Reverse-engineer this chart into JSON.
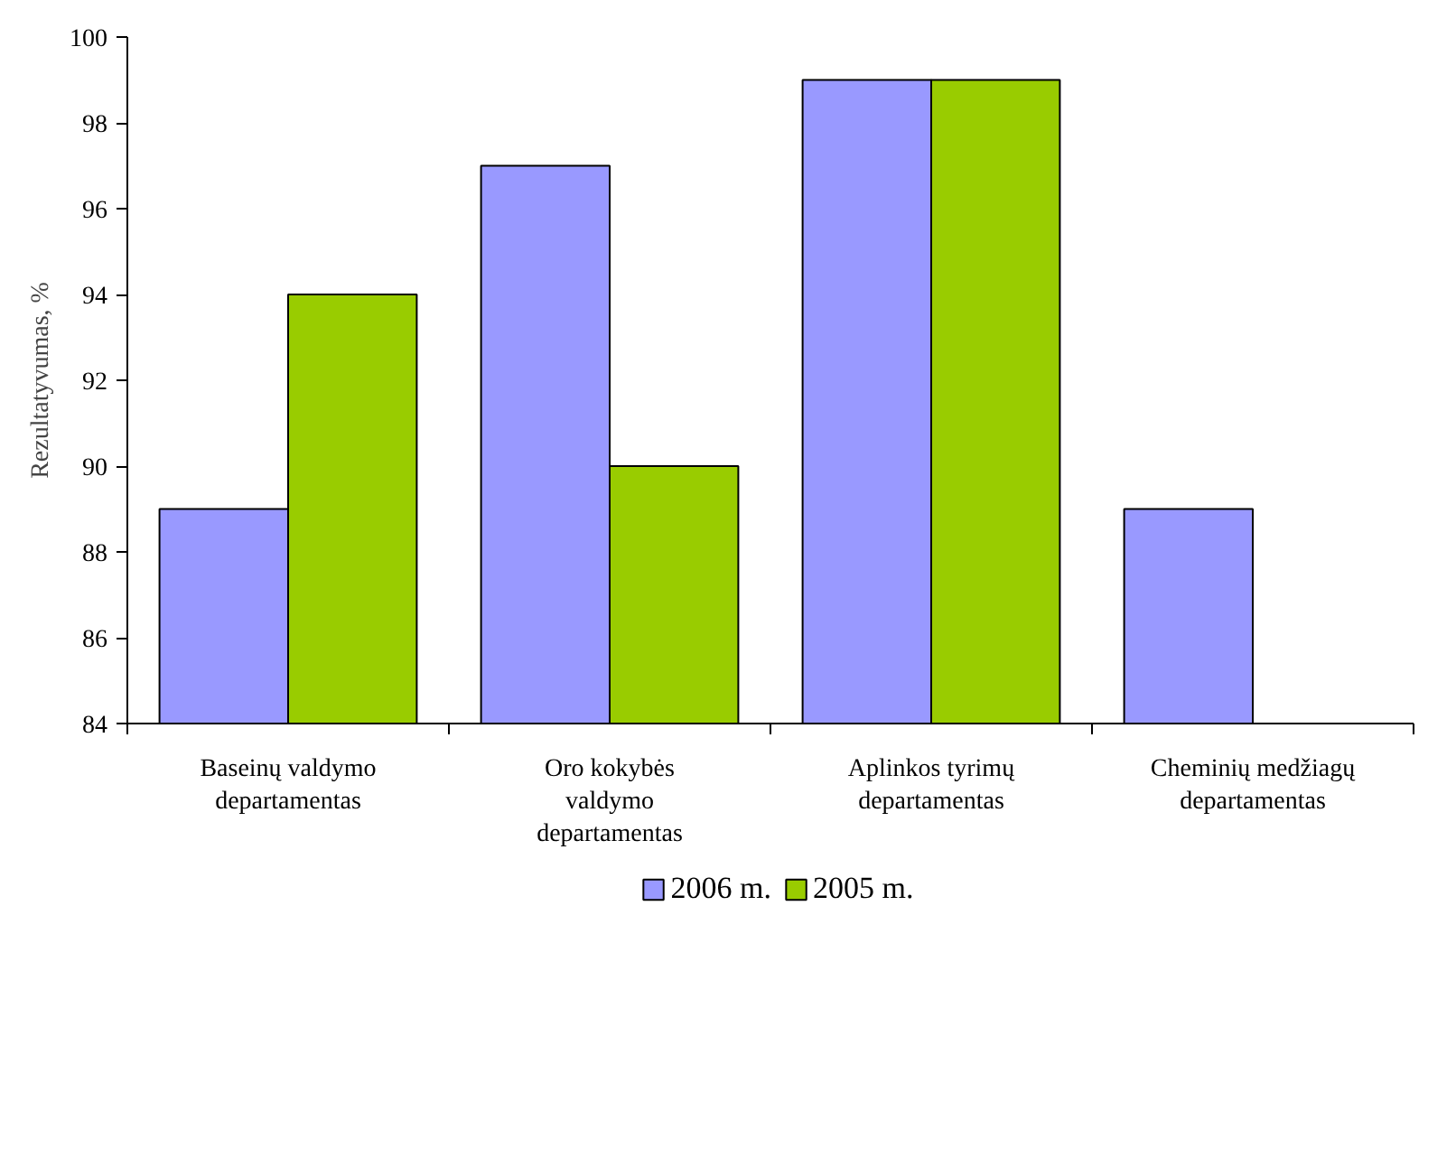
{
  "chart_data": {
    "type": "bar",
    "ylabel": "Rezultatyvumas, %",
    "categories": [
      "Baseinų valdymo departamentas",
      "Oro kokybės valdymo departamentas",
      "Aplinkos tyrimų departamentas",
      "Cheminių medžiagų departamentas"
    ],
    "series": [
      {
        "name": "2006 m.",
        "color": "#9999ff",
        "values": [
          89,
          97,
          99,
          89
        ]
      },
      {
        "name": "2005 m.",
        "color": "#99cc00",
        "values": [
          94,
          90,
          99,
          null
        ]
      }
    ],
    "ylim": [
      84,
      100
    ],
    "yticks": [
      84,
      86,
      88,
      90,
      92,
      94,
      96,
      98,
      100
    ],
    "grid": false,
    "legend": "bottom"
  }
}
